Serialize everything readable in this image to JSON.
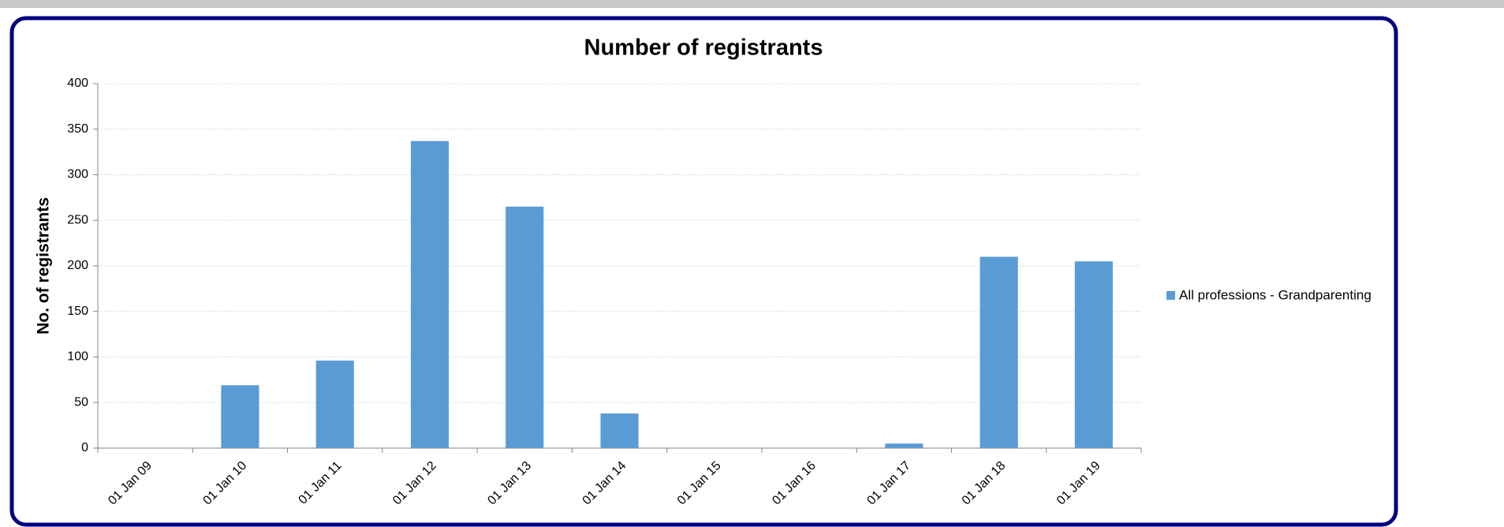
{
  "chart_data": {
    "type": "bar",
    "title": "Number of registrants",
    "y_label": "No. of registrants",
    "categories": [
      "01 Jan 09",
      "01 Jan 10",
      "01 Jan 11",
      "01 Jan 12",
      "01 Jan 13",
      "01 Jan 14",
      "01 Jan 15",
      "01 Jan 16",
      "01 Jan 17",
      "01 Jan 18",
      "01 Jan 19"
    ],
    "series": [
      {
        "name": "All professions - Grandparenting",
        "color": "#5b9bd5",
        "values": [
          0,
          69,
          96,
          337,
          265,
          38,
          0,
          0,
          5,
          210,
          205
        ]
      }
    ],
    "ylim": [
      0,
      400
    ],
    "yticks": [
      0,
      50,
      100,
      150,
      200,
      250,
      300,
      350,
      400
    ],
    "grid": true,
    "legend": "right"
  }
}
